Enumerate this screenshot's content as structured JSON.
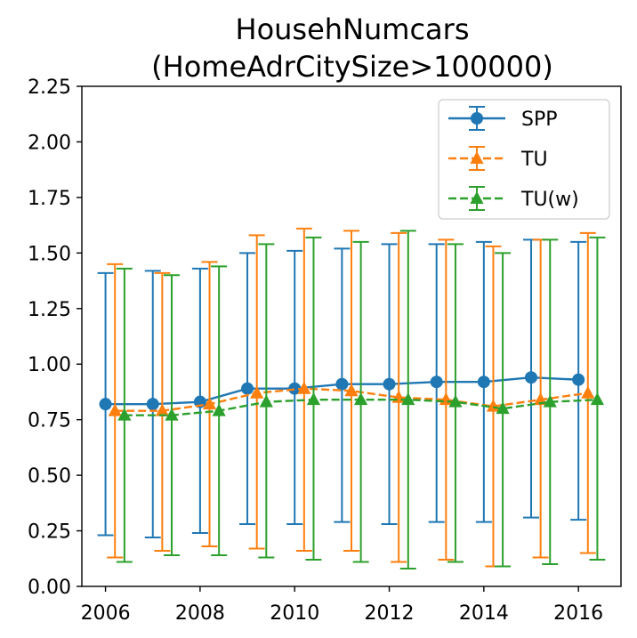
{
  "chart_data": {
    "type": "line",
    "title": "HousehNumcars",
    "subtitle": "(HomeAdrCitySize>100000)",
    "xlabel": "",
    "ylabel": "",
    "xlim": [
      2005.5,
      2016.9
    ],
    "ylim": [
      0.0,
      2.25
    ],
    "x_ticks": [
      2006,
      2008,
      2010,
      2012,
      2014,
      2016
    ],
    "y_ticks": [
      0.0,
      0.25,
      0.5,
      0.75,
      1.0,
      1.25,
      1.5,
      1.75,
      2.0,
      2.25
    ],
    "x_tick_labels": [
      "2006",
      "2008",
      "2010",
      "2012",
      "2014",
      "2016"
    ],
    "y_tick_labels": [
      "0.00",
      "0.25",
      "0.50",
      "0.75",
      "1.00",
      "1.25",
      "1.50",
      "1.75",
      "2.00",
      "2.25"
    ],
    "legend_position": "top-right",
    "grid": false,
    "series": [
      {
        "name": "SPP",
        "color": "#1f77b4",
        "marker": "circle",
        "linestyle": "solid",
        "x": [
          2006,
          2007,
          2008,
          2009,
          2010,
          2011,
          2012,
          2013,
          2014,
          2015,
          2016
        ],
        "y": [
          0.82,
          0.82,
          0.83,
          0.89,
          0.89,
          0.91,
          0.91,
          0.92,
          0.92,
          0.94,
          0.93
        ],
        "err_low": [
          0.23,
          0.22,
          0.24,
          0.28,
          0.28,
          0.29,
          0.28,
          0.29,
          0.29,
          0.31,
          0.3
        ],
        "err_high": [
          1.41,
          1.42,
          1.43,
          1.5,
          1.51,
          1.52,
          1.54,
          1.54,
          1.55,
          1.56,
          1.55
        ]
      },
      {
        "name": "TU",
        "color": "#ff7f0e",
        "marker": "triangle",
        "linestyle": "dashed",
        "x": [
          2006.2,
          2007.2,
          2008.2,
          2009.2,
          2010.2,
          2011.2,
          2012.2,
          2013.2,
          2014.2,
          2015.2,
          2016.2
        ],
        "y": [
          0.79,
          0.79,
          0.82,
          0.87,
          0.89,
          0.88,
          0.85,
          0.84,
          0.81,
          0.84,
          0.87
        ],
        "err_low": [
          0.13,
          0.16,
          0.18,
          0.17,
          0.16,
          0.16,
          0.11,
          0.12,
          0.09,
          0.13,
          0.15
        ],
        "err_high": [
          1.45,
          1.41,
          1.46,
          1.58,
          1.61,
          1.6,
          1.59,
          1.56,
          1.53,
          1.56,
          1.59
        ]
      },
      {
        "name": "TU(w)",
        "color": "#2ca02c",
        "marker": "triangle",
        "linestyle": "dashed",
        "x": [
          2006.4,
          2007.4,
          2008.4,
          2009.4,
          2010.4,
          2011.4,
          2012.4,
          2013.4,
          2014.4,
          2015.4,
          2016.4
        ],
        "y": [
          0.77,
          0.77,
          0.79,
          0.83,
          0.84,
          0.84,
          0.84,
          0.83,
          0.8,
          0.83,
          0.84
        ],
        "err_low": [
          0.11,
          0.14,
          0.14,
          0.13,
          0.12,
          0.11,
          0.08,
          0.11,
          0.09,
          0.1,
          0.12
        ],
        "err_high": [
          1.43,
          1.4,
          1.44,
          1.54,
          1.57,
          1.55,
          1.6,
          1.54,
          1.5,
          1.56,
          1.57
        ]
      }
    ]
  }
}
